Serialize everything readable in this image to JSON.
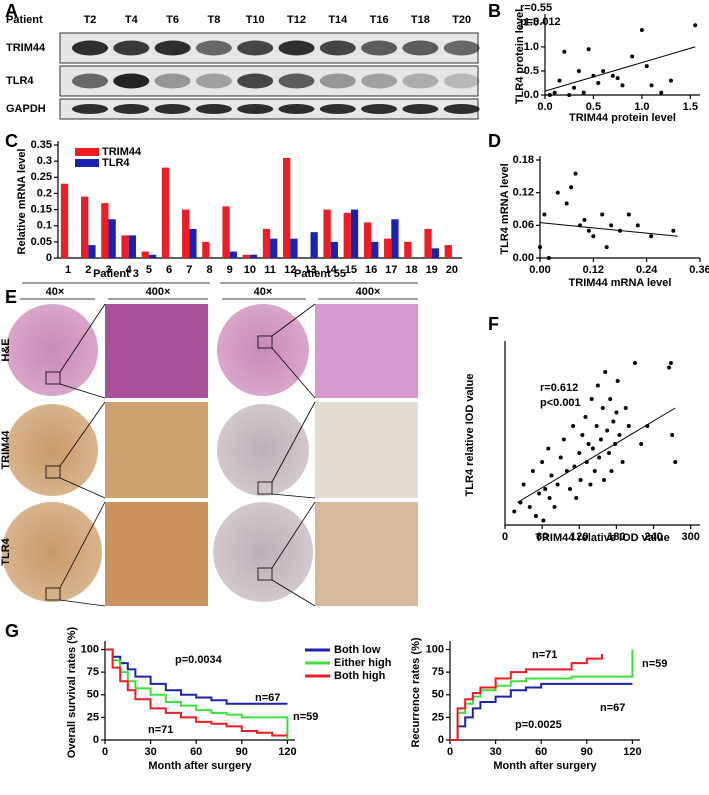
{
  "panels": [
    "A",
    "B",
    "C",
    "D",
    "E",
    "F",
    "G"
  ],
  "blot": {
    "row_header": "Patient",
    "lanes": [
      "T2",
      "T4",
      "T6",
      "T8",
      "T10",
      "T12",
      "T14",
      "T16",
      "T18",
      "T20"
    ],
    "rows": [
      "TRIM44",
      "TLR4",
      "GAPDH"
    ]
  },
  "ihc": {
    "patients": [
      "Patient 3",
      "Patient 55"
    ],
    "magnifications": [
      "40×",
      "400×"
    ],
    "rows": [
      "H&E",
      "TRIM44",
      "TLR4"
    ]
  },
  "chart_data": [
    {
      "type": "scatter",
      "x_label": "TRIM44 protein level",
      "y_label": "TLR4 protein level",
      "annotations": [
        "r=0.55",
        "p=0.012"
      ],
      "color": "#000000",
      "x": [
        0.05,
        0.1,
        0.15,
        0.2,
        0.25,
        0.3,
        0.35,
        0.4,
        0.45,
        0.5,
        0.55,
        0.6,
        0.7,
        0.75,
        0.8,
        0.9,
        1.0,
        1.05,
        1.1,
        1.2,
        1.3,
        1.55
      ],
      "values": [
        0.0,
        0.05,
        0.3,
        0.9,
        0.0,
        0.15,
        0.5,
        0.05,
        0.95,
        0.4,
        0.25,
        0.5,
        0.4,
        0.35,
        0.2,
        0.8,
        1.35,
        0.6,
        0.2,
        0.05,
        0.3,
        1.45
      ],
      "fit_line": {
        "x": [
          0,
          1.55
        ],
        "values": [
          0.08,
          1.0
        ]
      },
      "xlim": [
        0,
        1.6
      ],
      "xticks": [
        {
          "value": 0,
          "label": "0.0"
        },
        0.5,
        {
          "value": 1,
          "label": "1.0"
        },
        1.5
      ],
      "ylim": [
        0,
        1.6
      ],
      "yticks": [
        {
          "value": 0,
          "label": "0.0"
        },
        0.5,
        {
          "value": 1,
          "label": "1.0"
        },
        1.5
      ]
    },
    {
      "type": "bar",
      "y_label": "Relative mRNA level",
      "categories": [
        "1",
        "2",
        "3",
        "4",
        "5",
        "6",
        "7",
        "8",
        "9",
        "10",
        "11",
        "12",
        "13",
        "14",
        "15",
        "16",
        "17",
        "18",
        "19",
        "20"
      ],
      "series": [
        {
          "name": "TRIM44",
          "color": "#ee1c25",
          "values": [
            0.23,
            0.19,
            0.17,
            0.07,
            0.02,
            0.28,
            0.15,
            0.05,
            0.16,
            0.01,
            0.09,
            0.31,
            0,
            0.15,
            0.14,
            0.11,
            0.06,
            0.05,
            0.09,
            0.04
          ]
        },
        {
          "name": "TLR4",
          "color": "#1c22b0",
          "values": [
            0,
            0.04,
            0.12,
            0.07,
            0.01,
            0,
            0.09,
            0,
            0.02,
            0.01,
            0.06,
            0.06,
            0.08,
            0.05,
            0.15,
            0.05,
            0.12,
            0,
            0.03,
            0
          ]
        }
      ],
      "ylim": [
        0,
        0.35
      ],
      "yticks": [
        0,
        0.05,
        0.1,
        0.15,
        0.2,
        0.25,
        0.3,
        0.35
      ]
    },
    {
      "type": "scatter",
      "x_label": "TRIM44 mRNA level",
      "y_label": "TLR4 mRNA level",
      "color": "#000000",
      "x": [
        0.0,
        0.01,
        0.02,
        0.04,
        0.06,
        0.07,
        0.08,
        0.09,
        0.1,
        0.11,
        0.12,
        0.14,
        0.15,
        0.16,
        0.18,
        0.2,
        0.22,
        0.25,
        0.3
      ],
      "values": [
        0.02,
        0.08,
        0.0,
        0.12,
        0.1,
        0.13,
        0.155,
        0.06,
        0.07,
        0.05,
        0.04,
        0.08,
        0.02,
        0.06,
        0.05,
        0.08,
        0.06,
        0.04,
        0.05
      ],
      "fit_line": {
        "x": [
          0,
          0.31
        ],
        "values": [
          0.065,
          0.04
        ]
      },
      "xlim": [
        0,
        0.36
      ],
      "xticks": [
        {
          "value": 0,
          "label": "0.00"
        },
        0.12,
        0.24,
        0.36
      ],
      "ylim": [
        0,
        0.18
      ],
      "yticks": [
        {
          "value": 0,
          "label": "0.00"
        },
        0.06,
        0.12,
        0.18
      ]
    },
    {
      "type": "scatter",
      "x_label": "TRIM44 relative IOD value",
      "y_label": "TLR4 relative IOD value",
      "annotations": [
        "r=0.612",
        "p<0.001"
      ],
      "color": "#000000",
      "x": [
        15,
        25,
        30,
        40,
        45,
        50,
        55,
        60,
        62,
        65,
        70,
        72,
        75,
        80,
        85,
        90,
        95,
        100,
        105,
        110,
        112,
        115,
        120,
        122,
        125,
        130,
        132,
        135,
        138,
        140,
        142,
        145,
        148,
        150,
        152,
        155,
        158,
        160,
        162,
        165,
        168,
        170,
        172,
        175,
        178,
        180,
        182,
        185,
        190,
        195,
        200,
        210,
        220,
        230,
        265,
        268,
        270,
        275
      ],
      "values": [
        15,
        25,
        45,
        20,
        60,
        10,
        35,
        70,
        5,
        40,
        85,
        30,
        55,
        20,
        45,
        75,
        95,
        60,
        40,
        110,
        65,
        30,
        80,
        50,
        100,
        120,
        70,
        90,
        45,
        140,
        85,
        60,
        110,
        155,
        75,
        95,
        130,
        50,
        170,
        105,
        80,
        140,
        60,
        115,
        90,
        125,
        160,
        100,
        70,
        130,
        110,
        180,
        90,
        110,
        175,
        180,
        100,
        70
      ],
      "fit_line": {
        "x": [
          20,
          275
        ],
        "values": [
          25,
          130
        ]
      },
      "xlim": [
        0,
        315
      ],
      "xticks": [
        0,
        60,
        120,
        180,
        240,
        300
      ],
      "ylim": [
        0,
        200
      ]
    },
    {
      "type": "line",
      "x_label": "Month after surgery",
      "y_label": "Overall survival rates (%)",
      "annotations": [
        "p=0.0034",
        "n=67",
        "n=59",
        "n=71"
      ],
      "x": [
        0,
        5,
        10,
        15,
        20,
        30,
        40,
        50,
        60,
        70,
        80,
        90,
        100,
        110,
        120
      ],
      "series": [
        {
          "name": "Both low",
          "color": "#1c22b0",
          "values": [
            100,
            92,
            85,
            78,
            70,
            62,
            55,
            50,
            47,
            44,
            40,
            40,
            40,
            40,
            40
          ]
        },
        {
          "name": "Either high",
          "color": "#3ee03e",
          "values": [
            100,
            88,
            75,
            65,
            57,
            50,
            42,
            38,
            33,
            30,
            28,
            25,
            25,
            25,
            0
          ]
        },
        {
          "name": "Both high",
          "color": "#ee1c25",
          "values": [
            100,
            80,
            65,
            55,
            45,
            35,
            30,
            25,
            20,
            18,
            15,
            10,
            8,
            5,
            5
          ]
        }
      ],
      "xlim": [
        0,
        125
      ],
      "xticks": [
        0,
        30,
        60,
        90,
        120
      ],
      "ylim": [
        0,
        105
      ],
      "yticks": [
        0,
        25,
        50,
        75,
        100
      ]
    },
    {
      "type": "line",
      "x_label": "Month after surgery",
      "y_label": "Recurrence rates (%)",
      "annotations": [
        "n=71",
        "n=59",
        "n=67",
        "p=0.0025"
      ],
      "x": [
        0,
        5,
        10,
        15,
        20,
        30,
        40,
        50,
        60,
        70,
        80,
        90,
        100,
        110,
        120
      ],
      "series": [
        {
          "color": "#1c22b0",
          "values": [
            0,
            15,
            25,
            35,
            42,
            48,
            55,
            58,
            62,
            62,
            62,
            62,
            62,
            62,
            62
          ]
        },
        {
          "color": "#3ee03e",
          "values": [
            0,
            30,
            40,
            48,
            55,
            60,
            65,
            68,
            68,
            68,
            70,
            70,
            70,
            70,
            100
          ]
        },
        {
          "color": "#ee1c25",
          "values": [
            0,
            35,
            45,
            52,
            58,
            68,
            75,
            78,
            78,
            78,
            85,
            90,
            95,
            null,
            null
          ]
        }
      ],
      "xlim": [
        0,
        125
      ],
      "xticks": [
        0,
        30,
        60,
        90,
        120
      ],
      "ylim": [
        0,
        105
      ],
      "yticks": [
        0,
        25,
        50,
        75,
        100
      ]
    }
  ]
}
